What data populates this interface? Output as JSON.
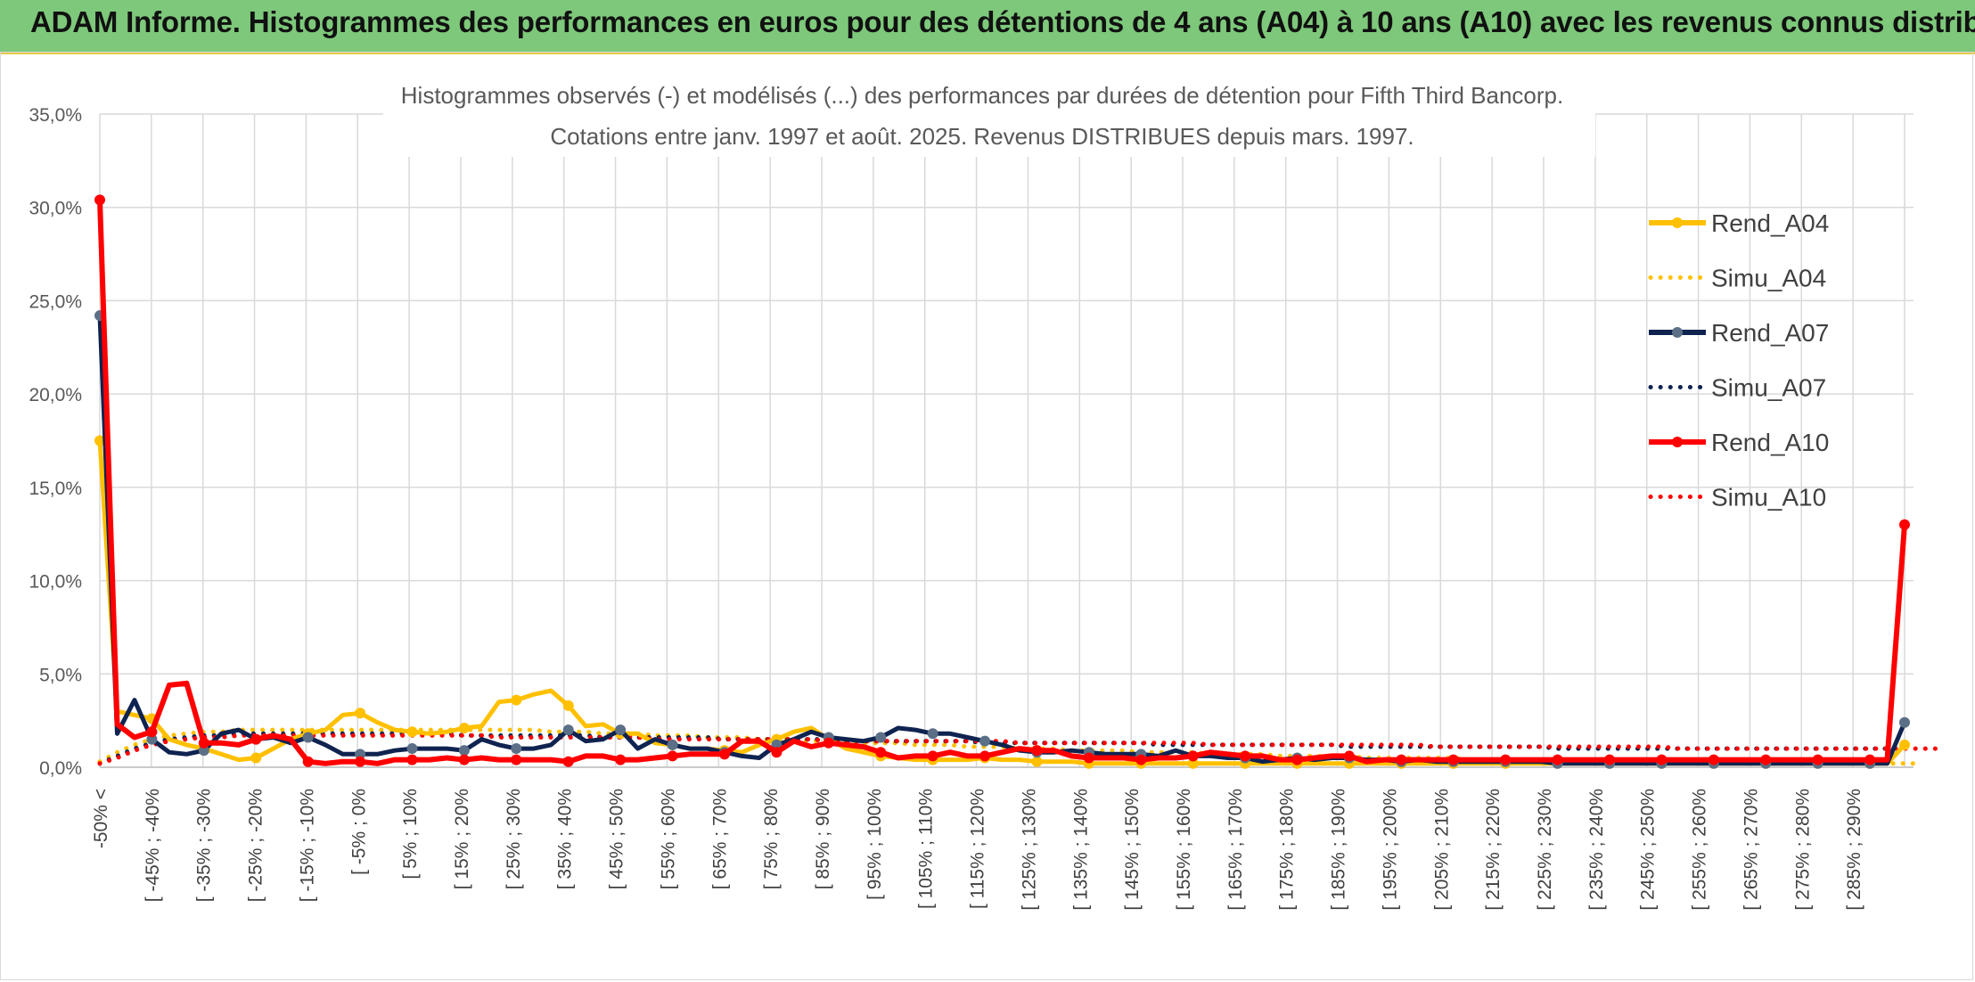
{
  "header": {
    "title": "ADAM Informe. Histogrammes des performances en euros pour des détentions de 4 ans (A04) à 10 ans (A10) avec les revenus connus distribués"
  },
  "colors": {
    "banner": "#7dc87a",
    "A04": "#ffc000",
    "A07": "#0f2350",
    "A10": "#ff0000",
    "grid": "#d9d9d9"
  },
  "chart_data": {
    "type": "line",
    "title_lines": [
      "Histogrammes observés (-) et modélisés (...) des performances par durées de détention pour Fifth Third Bancorp.",
      "Cotations entre janv. 1997 et août. 2025. Revenus DISTRIBUES depuis mars. 1997."
    ],
    "xlabel": "",
    "ylabel": "",
    "ylim": [
      0,
      35
    ],
    "yticks": [
      "0,0%",
      "5,0%",
      "10,0%",
      "15,0%",
      "20,0%",
      "25,0%",
      "30,0%",
      "35,0%"
    ],
    "grid": true,
    "legend_position": "right",
    "x_labels_shown": [
      "-50% <",
      "[ -45% ; -40%",
      "[ -35% ; -30%",
      "[ -25% ; -20%",
      "[ -15% ; -10%",
      "[ -5% ; 0%",
      "[ 5% ; 10%",
      "[ 15% ; 20%",
      "[ 25% ; 30%",
      "[ 35% ; 40%",
      "[ 45% ; 50%",
      "[ 55% ; 60%",
      "[ 65% ; 70%",
      "[ 75% ; 80%",
      "[ 85% ; 90%",
      "[ 95% ; 100%",
      "[ 105% ; 110%",
      "[ 115% ; 120%",
      "[ 125% ; 130%",
      "[ 135% ; 140%",
      "[ 145% ; 150%",
      "[ 155% ; 160%",
      "[ 165% ; 170%",
      "[ 175% ; 180%",
      "[ 185% ; 190%",
      "[ 195% ; 200%",
      "[ 205% ; 210%",
      "[ 215% ; 220%",
      "[ 225% ; 230%",
      "[ 235% ; 240%",
      "[ 245% ; 250%",
      "[ 255% ; 260%",
      "[ 265% ; 270%",
      "[ 275% ; 280%",
      "[ 285% ; 290%"
    ],
    "series": [
      {
        "name": "Rend_A04",
        "style": "solid",
        "color": "#ffc000",
        "values": [
          17.5,
          3.0,
          2.8,
          2.6,
          1.5,
          1.2,
          1.0,
          0.7,
          0.4,
          0.5,
          1.0,
          1.5,
          1.8,
          2.0,
          2.8,
          2.9,
          2.4,
          2.0,
          1.9,
          1.8,
          1.9,
          2.1,
          2.2,
          3.5,
          3.6,
          3.9,
          4.1,
          3.3,
          2.2,
          2.3,
          1.8,
          1.8,
          1.3,
          1.2,
          1.0,
          1.0,
          0.9,
          0.8,
          1.2,
          1.5,
          1.9,
          2.1,
          1.5,
          1.0,
          0.8,
          0.6,
          0.5,
          0.4,
          0.4,
          0.4,
          0.4,
          0.5,
          0.4,
          0.4,
          0.3,
          0.3,
          0.3,
          0.2,
          0.2,
          0.2,
          0.2,
          0.2,
          0.2,
          0.2,
          0.2,
          0.2,
          0.2,
          0.2,
          0.2,
          0.2,
          0.2,
          0.2,
          0.2,
          0.2,
          0.2,
          0.2,
          0.2,
          0.2,
          0.2,
          0.2,
          0.2,
          0.2,
          0.2,
          0.2,
          0.2,
          0.2,
          0.2,
          0.2,
          0.2,
          0.2,
          0.2,
          0.2,
          0.2,
          0.2,
          0.2,
          0.2,
          0.2,
          0.2,
          0.2,
          0.2,
          0.2,
          0.2,
          0.2,
          0.2,
          1.2
        ]
      },
      {
        "name": "Simu_A04",
        "style": "dotted",
        "color": "#ffc000",
        "values": [
          0.3,
          0.8,
          1.2,
          1.5,
          1.7,
          1.8,
          1.9,
          1.9,
          2.0,
          2.0,
          2.0,
          2.0,
          2.0,
          2.0,
          2.0,
          2.0,
          2.0,
          2.0,
          2.0,
          2.0,
          2.0,
          2.0,
          2.0,
          2.0,
          2.0,
          2.0,
          1.9,
          1.9,
          1.9,
          1.8,
          1.8,
          1.8,
          1.7,
          1.7,
          1.7,
          1.6,
          1.6,
          1.6,
          1.5,
          1.5,
          1.5,
          1.4,
          1.4,
          1.4,
          1.3,
          1.3,
          1.3,
          1.2,
          1.2,
          1.2,
          1.1,
          1.1,
          1.1,
          1.0,
          1.0,
          1.0,
          0.9,
          0.9,
          0.9,
          0.9,
          0.8,
          0.8,
          0.8,
          0.8,
          0.7,
          0.7,
          0.7,
          0.7,
          0.6,
          0.6,
          0.6,
          0.6,
          0.6,
          0.5,
          0.5,
          0.5,
          0.5,
          0.5,
          0.5,
          0.4,
          0.4,
          0.4,
          0.4,
          0.4,
          0.4,
          0.4,
          0.3,
          0.3,
          0.3,
          0.3,
          0.3,
          0.3,
          0.3,
          0.3,
          0.3,
          0.3,
          0.3,
          0.2,
          0.2,
          0.2,
          0.2,
          0.2,
          0.2,
          0.2,
          0.2,
          0.2
        ]
      },
      {
        "name": "Rend_A07",
        "style": "solid",
        "color": "#0f2350",
        "values": [
          24.2,
          1.8,
          3.6,
          1.5,
          0.8,
          0.7,
          0.9,
          1.8,
          2.0,
          1.5,
          1.6,
          1.3,
          1.6,
          1.2,
          0.7,
          0.7,
          0.7,
          0.9,
          1.0,
          1.0,
          1.0,
          0.9,
          1.5,
          1.2,
          1.0,
          1.0,
          1.2,
          2.0,
          1.4,
          1.5,
          2.0,
          1.0,
          1.5,
          1.2,
          1.0,
          1.0,
          0.8,
          0.6,
          0.5,
          1.2,
          1.5,
          1.9,
          1.6,
          1.5,
          1.4,
          1.6,
          2.1,
          2.0,
          1.8,
          1.8,
          1.6,
          1.4,
          1.2,
          0.9,
          0.8,
          0.8,
          0.9,
          0.8,
          0.7,
          0.7,
          0.7,
          0.6,
          0.9,
          0.6,
          0.6,
          0.5,
          0.5,
          0.3,
          0.4,
          0.5,
          0.4,
          0.5,
          0.5,
          0.4,
          0.4,
          0.3,
          0.4,
          0.3,
          0.3,
          0.3,
          0.3,
          0.3,
          0.3,
          0.3,
          0.2,
          0.2,
          0.2,
          0.2,
          0.2,
          0.2,
          0.2,
          0.2,
          0.2,
          0.2,
          0.2,
          0.2,
          0.2,
          0.2,
          0.2,
          0.2,
          0.2,
          0.2,
          0.2,
          0.2,
          2.4
        ]
      },
      {
        "name": "Simu_A07",
        "style": "dotted",
        "color": "#0f2350",
        "values": [
          0.2,
          0.6,
          1.0,
          1.3,
          1.5,
          1.6,
          1.7,
          1.7,
          1.8,
          1.8,
          1.8,
          1.8,
          1.8,
          1.8,
          1.8,
          1.8,
          1.8,
          1.8,
          1.8,
          1.8,
          1.8,
          1.7,
          1.7,
          1.7,
          1.7,
          1.7,
          1.7,
          1.7,
          1.7,
          1.6,
          1.6,
          1.6,
          1.6,
          1.6,
          1.6,
          1.6,
          1.5,
          1.5,
          1.5,
          1.5,
          1.5,
          1.5,
          1.5,
          1.4,
          1.4,
          1.4,
          1.4,
          1.4,
          1.4,
          1.4,
          1.4,
          1.3,
          1.3,
          1.3,
          1.3,
          1.3,
          1.3,
          1.3,
          1.3,
          1.3,
          1.3,
          1.2,
          1.2,
          1.2,
          1.2,
          1.2,
          1.2,
          1.2,
          1.2,
          1.2,
          1.2,
          1.2,
          1.1,
          1.1,
          1.1,
          1.1,
          1.1,
          1.1,
          1.1,
          1.1,
          1.1,
          1.1,
          1.1,
          1.1,
          1.0,
          1.0,
          1.0,
          1.0,
          1.0,
          1.0,
          1.0,
          1.0,
          1.0,
          1.0,
          1.0,
          1.0,
          1.0,
          1.0,
          1.0,
          1.0,
          1.0,
          1.0,
          1.0,
          1.0
        ]
      },
      {
        "name": "Rend_A10",
        "style": "solid",
        "color": "#ff0000",
        "values": [
          30.4,
          2.3,
          1.6,
          1.9,
          4.4,
          4.5,
          1.3,
          1.3,
          1.2,
          1.5,
          1.7,
          1.5,
          0.3,
          0.2,
          0.3,
          0.3,
          0.2,
          0.4,
          0.4,
          0.4,
          0.5,
          0.4,
          0.5,
          0.4,
          0.4,
          0.4,
          0.4,
          0.3,
          0.6,
          0.6,
          0.4,
          0.4,
          0.5,
          0.6,
          0.7,
          0.7,
          0.7,
          1.4,
          1.4,
          0.8,
          1.4,
          1.1,
          1.3,
          1.2,
          1.1,
          0.8,
          0.5,
          0.6,
          0.6,
          0.8,
          0.6,
          0.6,
          0.8,
          1.0,
          0.9,
          0.9,
          0.6,
          0.5,
          0.5,
          0.5,
          0.4,
          0.5,
          0.5,
          0.6,
          0.8,
          0.7,
          0.6,
          0.6,
          0.4,
          0.4,
          0.5,
          0.6,
          0.6,
          0.3,
          0.4,
          0.4,
          0.4,
          0.4,
          0.4,
          0.4,
          0.4,
          0.4,
          0.4,
          0.4,
          0.4,
          0.4,
          0.4,
          0.4,
          0.4,
          0.4,
          0.4,
          0.4,
          0.4,
          0.4,
          0.4,
          0.4,
          0.4,
          0.4,
          0.4,
          0.4,
          0.4,
          0.4,
          0.4,
          0.4,
          13.0
        ]
      },
      {
        "name": "Simu_A10",
        "style": "dotted",
        "color": "#ff0000",
        "values": [
          0.2,
          0.5,
          0.9,
          1.2,
          1.4,
          1.5,
          1.6,
          1.6,
          1.7,
          1.7,
          1.7,
          1.7,
          1.7,
          1.7,
          1.7,
          1.7,
          1.7,
          1.7,
          1.7,
          1.7,
          1.7,
          1.7,
          1.7,
          1.6,
          1.6,
          1.6,
          1.6,
          1.6,
          1.6,
          1.6,
          1.6,
          1.6,
          1.5,
          1.5,
          1.5,
          1.5,
          1.5,
          1.5,
          1.5,
          1.5,
          1.5,
          1.5,
          1.4,
          1.4,
          1.4,
          1.4,
          1.4,
          1.4,
          1.4,
          1.4,
          1.4,
          1.4,
          1.4,
          1.3,
          1.3,
          1.3,
          1.3,
          1.3,
          1.3,
          1.3,
          1.3,
          1.3,
          1.3,
          1.3,
          1.2,
          1.2,
          1.2,
          1.2,
          1.2,
          1.2,
          1.2,
          1.2,
          1.2,
          1.2,
          1.2,
          1.2,
          1.2,
          1.1,
          1.1,
          1.1,
          1.1,
          1.1,
          1.1,
          1.1,
          1.1,
          1.1,
          1.1,
          1.1,
          1.1,
          1.1,
          1.1,
          1.0,
          1.0,
          1.0,
          1.0,
          1.0,
          1.0,
          1.0,
          1.0,
          1.0,
          1.0,
          1.0,
          1.0,
          1.0,
          1.0,
          1.0,
          1.0
        ]
      }
    ]
  }
}
